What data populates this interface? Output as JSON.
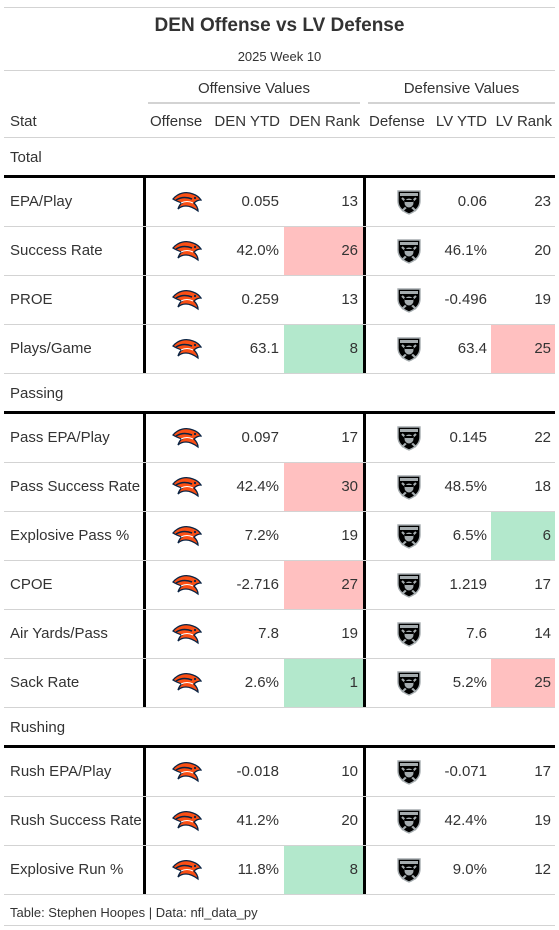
{
  "title": "DEN Offense vs LV Defense",
  "subtitle": "2025 Week 10",
  "spanners": {
    "offense": "Offensive Values",
    "defense": "Defensive Values"
  },
  "columns": {
    "stat": "Stat",
    "offense": "Offense",
    "off_ytd": "DEN YTD",
    "off_rank": "DEN Rank",
    "defense": "Defense",
    "def_ytd": "LV YTD",
    "def_rank": "LV Rank"
  },
  "colors": {
    "bad_rank": "#ffc0c0",
    "good_rank": "#b3e8cc",
    "broncos_orange": "#fb4f14",
    "broncos_navy": "#0a2343",
    "raiders_black": "#000000",
    "raiders_silver": "#a5acaf"
  },
  "icons": {
    "offense_logo": "broncos-logo-icon",
    "defense_logo": "raiders-logo-icon"
  },
  "groups": [
    {
      "name": "Total",
      "rows": [
        {
          "stat": "EPA/Play",
          "off_ytd": "0.055",
          "off_rank": "13",
          "off_hl": "",
          "def_ytd": "0.06",
          "def_rank": "23",
          "def_hl": ""
        },
        {
          "stat": "Success Rate",
          "off_ytd": "42.0%",
          "off_rank": "26",
          "off_hl": "bad",
          "def_ytd": "46.1%",
          "def_rank": "20",
          "def_hl": ""
        },
        {
          "stat": "PROE",
          "off_ytd": "0.259",
          "off_rank": "13",
          "off_hl": "",
          "def_ytd": "-0.496",
          "def_rank": "19",
          "def_hl": ""
        },
        {
          "stat": "Plays/Game",
          "off_ytd": "63.1",
          "off_rank": "8",
          "off_hl": "good",
          "def_ytd": "63.4",
          "def_rank": "25",
          "def_hl": "bad"
        }
      ]
    },
    {
      "name": "Passing",
      "rows": [
        {
          "stat": "Pass EPA/Play",
          "off_ytd": "0.097",
          "off_rank": "17",
          "off_hl": "",
          "def_ytd": "0.145",
          "def_rank": "22",
          "def_hl": ""
        },
        {
          "stat": "Pass Success Rate",
          "off_ytd": "42.4%",
          "off_rank": "30",
          "off_hl": "bad",
          "def_ytd": "48.5%",
          "def_rank": "18",
          "def_hl": ""
        },
        {
          "stat": "Explosive Pass %",
          "off_ytd": "7.2%",
          "off_rank": "19",
          "off_hl": "",
          "def_ytd": "6.5%",
          "def_rank": "6",
          "def_hl": "good"
        },
        {
          "stat": "CPOE",
          "off_ytd": "-2.716",
          "off_rank": "27",
          "off_hl": "bad",
          "def_ytd": "1.219",
          "def_rank": "17",
          "def_hl": ""
        },
        {
          "stat": "Air Yards/Pass",
          "off_ytd": "7.8",
          "off_rank": "19",
          "off_hl": "",
          "def_ytd": "7.6",
          "def_rank": "14",
          "def_hl": ""
        },
        {
          "stat": "Sack Rate",
          "off_ytd": "2.6%",
          "off_rank": "1",
          "off_hl": "good",
          "def_ytd": "5.2%",
          "def_rank": "25",
          "def_hl": "bad"
        }
      ]
    },
    {
      "name": "Rushing",
      "rows": [
        {
          "stat": "Rush EPA/Play",
          "off_ytd": "-0.018",
          "off_rank": "10",
          "off_hl": "",
          "def_ytd": "-0.071",
          "def_rank": "17",
          "def_hl": ""
        },
        {
          "stat": "Rush Success Rate",
          "off_ytd": "41.2%",
          "off_rank": "20",
          "off_hl": "",
          "def_ytd": "42.4%",
          "def_rank": "19",
          "def_hl": ""
        },
        {
          "stat": "Explosive Run %",
          "off_ytd": "11.8%",
          "off_rank": "8",
          "off_hl": "good",
          "def_ytd": "9.0%",
          "def_rank": "12",
          "def_hl": ""
        }
      ]
    }
  ],
  "footer": "Table: Stephen Hoopes | Data: nfl_data_py"
}
